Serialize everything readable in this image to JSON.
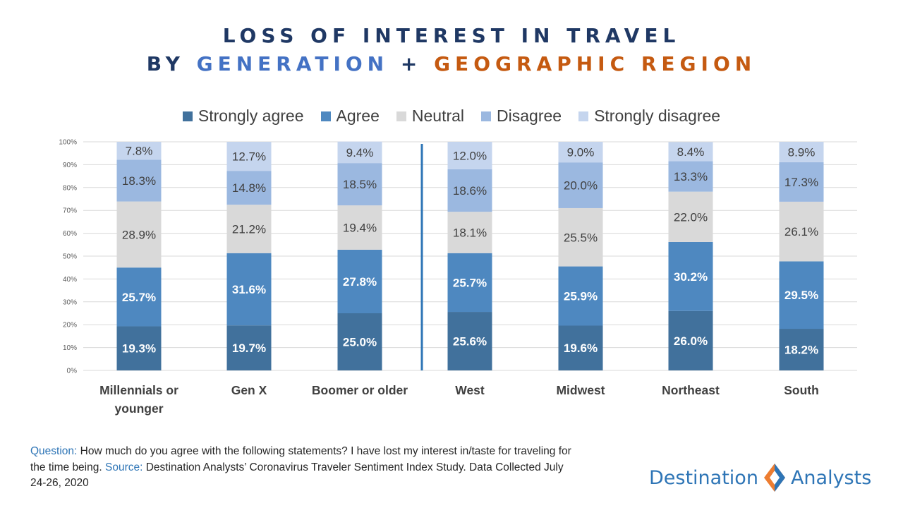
{
  "title": {
    "line1": "LOSS OF INTEREST IN TRAVEL",
    "line2_prefix": "BY",
    "line2_generation": "GENERATION",
    "line2_plus": "+",
    "line2_region": "GEOGRAPHIC REGION"
  },
  "colors": {
    "title": "#1f3864",
    "generation": "#4472c4",
    "region": "#c55a11",
    "divider": "#2e75b6"
  },
  "chart_data": {
    "type": "bar",
    "stacked": true,
    "percent_stacked": true,
    "categories": [
      "Millennials or younger",
      "Gen X",
      "Boomer or older",
      "West",
      "Midwest",
      "Northeast",
      "South"
    ],
    "series": [
      {
        "name": "Strongly agree",
        "color": "#41719c",
        "label_color": "#ffffff",
        "values": [
          19.3,
          19.7,
          25.0,
          25.6,
          19.6,
          26.0,
          18.2
        ]
      },
      {
        "name": "Agree",
        "color": "#4e88c0",
        "label_color": "#ffffff",
        "values": [
          25.7,
          31.6,
          27.8,
          25.7,
          25.9,
          30.2,
          29.5
        ]
      },
      {
        "name": "Neutral",
        "color": "#d9d9d9",
        "label_color": "#404040",
        "values": [
          28.9,
          21.2,
          19.4,
          18.1,
          25.5,
          22.0,
          26.1
        ]
      },
      {
        "name": "Disagree",
        "color": "#9bb8e0",
        "label_color": "#404040",
        "values": [
          18.3,
          14.8,
          18.5,
          18.6,
          20.0,
          13.3,
          17.3
        ]
      },
      {
        "name": "Strongly disagree",
        "color": "#c5d5ee",
        "label_color": "#404040",
        "values": [
          7.8,
          12.7,
          9.4,
          12.0,
          9.0,
          8.4,
          8.9
        ]
      }
    ],
    "y_ticks": [
      "0%",
      "10%",
      "20%",
      "30%",
      "40%",
      "50%",
      "60%",
      "70%",
      "80%",
      "90%",
      "100%"
    ],
    "ylim": [
      0,
      100
    ],
    "grid": true,
    "legend_position": "top",
    "divider_after_category": "Boomer or older"
  },
  "footnote": {
    "question_label": "Question:",
    "question_text": " How much do you agree with the following statements? I have lost my interest in/taste for traveling for the time being. ",
    "source_label": "Source:",
    "source_text": " Destination Analysts’ Coronavirus Traveler Sentiment Index Study. Data Collected July 24-26, 2020"
  },
  "logo": {
    "word1": "Destination",
    "word2": "Analysts"
  }
}
